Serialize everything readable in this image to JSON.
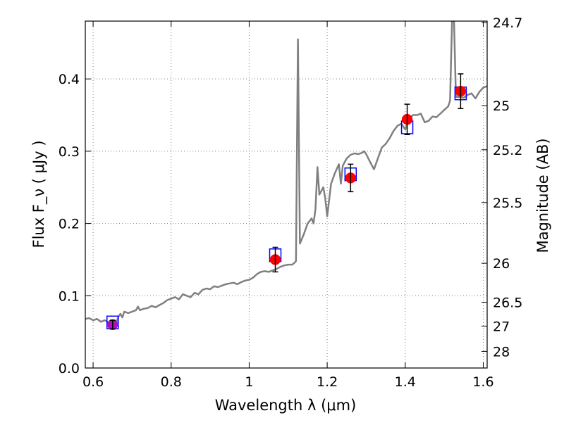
{
  "chart_data": {
    "type": "scatter",
    "title": "",
    "xlabel": "Wavelength  λ (μm)",
    "ylabel": "Flux  F_ν  ( μJy )",
    "y2label": "Magnitude (AB)",
    "xlim": [
      0.58,
      1.61
    ],
    "ylim": [
      0.0,
      0.48
    ],
    "grid": true,
    "x_ticks": [
      {
        "value": 0.6,
        "label": "0.6"
      },
      {
        "value": 0.8,
        "label": "0.8"
      },
      {
        "value": 1.0,
        "label": "1"
      },
      {
        "value": 1.2,
        "label": "1.2"
      },
      {
        "value": 1.4,
        "label": "1.4"
      },
      {
        "value": 1.6,
        "label": "1.6"
      }
    ],
    "y_ticks": [
      {
        "value": 0.0,
        "label": "0.0"
      },
      {
        "value": 0.1,
        "label": "0.1"
      },
      {
        "value": 0.2,
        "label": "0.2"
      },
      {
        "value": 0.3,
        "label": "0.3"
      },
      {
        "value": 0.4,
        "label": "0.4"
      }
    ],
    "y2_ticks": [
      {
        "flux": 0.478,
        "label": "24.7"
      },
      {
        "flux": 0.363,
        "label": "25"
      },
      {
        "flux": 0.302,
        "label": "25.2"
      },
      {
        "flux": 0.229,
        "label": "25.5"
      },
      {
        "flux": 0.145,
        "label": "26"
      },
      {
        "flux": 0.091,
        "label": "26.5"
      },
      {
        "flux": 0.058,
        "label": "27"
      },
      {
        "flux": 0.023,
        "label": "28"
      }
    ],
    "colors": {
      "model": "#808080",
      "observed": "#ff0000",
      "model_photometry": "#0000ff",
      "errorbar": "#000000",
      "grid": "#808080"
    },
    "series": [
      {
        "kind": "line",
        "points": [
          [
            0.58,
            0.068
          ],
          [
            0.59,
            0.069
          ],
          [
            0.6,
            0.066
          ],
          [
            0.61,
            0.068
          ],
          [
            0.62,
            0.064
          ],
          [
            0.63,
            0.066
          ],
          [
            0.64,
            0.063
          ],
          [
            0.65,
            0.061
          ],
          [
            0.66,
            0.064
          ],
          [
            0.665,
            0.071
          ],
          [
            0.67,
            0.075
          ],
          [
            0.675,
            0.07
          ],
          [
            0.68,
            0.078
          ],
          [
            0.69,
            0.076
          ],
          [
            0.7,
            0.078
          ],
          [
            0.71,
            0.08
          ],
          [
            0.715,
            0.085
          ],
          [
            0.72,
            0.08
          ],
          [
            0.73,
            0.082
          ],
          [
            0.74,
            0.083
          ],
          [
            0.75,
            0.086
          ],
          [
            0.76,
            0.084
          ],
          [
            0.77,
            0.087
          ],
          [
            0.78,
            0.09
          ],
          [
            0.79,
            0.094
          ],
          [
            0.8,
            0.096
          ],
          [
            0.81,
            0.098
          ],
          [
            0.82,
            0.095
          ],
          [
            0.83,
            0.102
          ],
          [
            0.84,
            0.1
          ],
          [
            0.85,
            0.098
          ],
          [
            0.86,
            0.104
          ],
          [
            0.87,
            0.102
          ],
          [
            0.88,
            0.108
          ],
          [
            0.89,
            0.11
          ],
          [
            0.9,
            0.109
          ],
          [
            0.91,
            0.113
          ],
          [
            0.92,
            0.112
          ],
          [
            0.93,
            0.114
          ],
          [
            0.94,
            0.116
          ],
          [
            0.95,
            0.117
          ],
          [
            0.96,
            0.118
          ],
          [
            0.97,
            0.116
          ],
          [
            0.98,
            0.119
          ],
          [
            0.99,
            0.121
          ],
          [
            1.0,
            0.122
          ],
          [
            1.01,
            0.125
          ],
          [
            1.02,
            0.13
          ],
          [
            1.03,
            0.133
          ],
          [
            1.04,
            0.134
          ],
          [
            1.05,
            0.133
          ],
          [
            1.06,
            0.135
          ],
          [
            1.07,
            0.137
          ],
          [
            1.08,
            0.14
          ],
          [
            1.09,
            0.142
          ],
          [
            1.1,
            0.143
          ],
          [
            1.11,
            0.143
          ],
          [
            1.115,
            0.145
          ],
          [
            1.12,
            0.148
          ],
          [
            1.125,
            0.455
          ],
          [
            1.13,
            0.172
          ],
          [
            1.14,
            0.185
          ],
          [
            1.15,
            0.2
          ],
          [
            1.16,
            0.207
          ],
          [
            1.165,
            0.2
          ],
          [
            1.17,
            0.22
          ],
          [
            1.175,
            0.278
          ],
          [
            1.18,
            0.24
          ],
          [
            1.19,
            0.25
          ],
          [
            1.195,
            0.235
          ],
          [
            1.2,
            0.21
          ],
          [
            1.21,
            0.255
          ],
          [
            1.22,
            0.27
          ],
          [
            1.23,
            0.282
          ],
          [
            1.235,
            0.255
          ],
          [
            1.24,
            0.28
          ],
          [
            1.25,
            0.29
          ],
          [
            1.26,
            0.295
          ],
          [
            1.27,
            0.297
          ],
          [
            1.28,
            0.296
          ],
          [
            1.29,
            0.298
          ],
          [
            1.295,
            0.3
          ],
          [
            1.3,
            0.296
          ],
          [
            1.31,
            0.285
          ],
          [
            1.32,
            0.275
          ],
          [
            1.33,
            0.29
          ],
          [
            1.34,
            0.305
          ],
          [
            1.35,
            0.31
          ],
          [
            1.36,
            0.318
          ],
          [
            1.37,
            0.328
          ],
          [
            1.38,
            0.335
          ],
          [
            1.39,
            0.338
          ],
          [
            1.4,
            0.33
          ],
          [
            1.41,
            0.345
          ],
          [
            1.42,
            0.35
          ],
          [
            1.43,
            0.35
          ],
          [
            1.44,
            0.352
          ],
          [
            1.45,
            0.34
          ],
          [
            1.46,
            0.342
          ],
          [
            1.47,
            0.348
          ],
          [
            1.48,
            0.347
          ],
          [
            1.49,
            0.352
          ],
          [
            1.5,
            0.357
          ],
          [
            1.51,
            0.362
          ],
          [
            1.515,
            0.37
          ],
          [
            1.52,
            0.48
          ],
          [
            1.525,
            0.48
          ],
          [
            1.53,
            0.375
          ],
          [
            1.54,
            0.375
          ],
          [
            1.55,
            0.374
          ],
          [
            1.56,
            0.378
          ],
          [
            1.57,
            0.38
          ],
          [
            1.58,
            0.373
          ],
          [
            1.59,
            0.382
          ],
          [
            1.6,
            0.388
          ],
          [
            1.61,
            0.39
          ]
        ]
      },
      {
        "kind": "scatter",
        "points": [
          {
            "x": 0.65,
            "y": 0.06,
            "err": 0.006
          },
          {
            "x": 1.067,
            "y": 0.15,
            "err": 0.017
          },
          {
            "x": 1.26,
            "y": 0.263,
            "err": 0.019
          },
          {
            "x": 1.405,
            "y": 0.344,
            "err": 0.021
          },
          {
            "x": 1.542,
            "y": 0.383,
            "err": 0.024
          }
        ]
      },
      {
        "kind": "squares",
        "points": [
          {
            "x": 0.65,
            "y": 0.063
          },
          {
            "x": 1.067,
            "y": 0.156
          },
          {
            "x": 1.26,
            "y": 0.268
          },
          {
            "x": 1.405,
            "y": 0.333
          },
          {
            "x": 1.542,
            "y": 0.38
          }
        ]
      }
    ]
  }
}
